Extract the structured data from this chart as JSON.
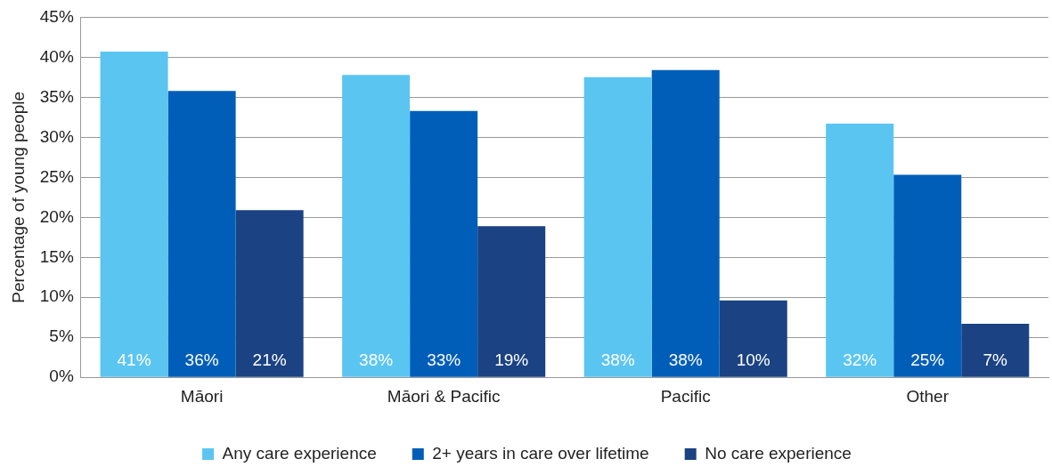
{
  "chart_data": {
    "type": "bar",
    "ylabel": "Percentage of young people",
    "categories": [
      "Māori",
      "Māori & Pacific",
      "Pacific",
      "Other"
    ],
    "series": [
      {
        "name": "Any care experience",
        "color": "#5bc5f2",
        "values": [
          40.7,
          37.8,
          37.5,
          31.7
        ],
        "value_labels": [
          "41%",
          "38%",
          "38%",
          "32%"
        ]
      },
      {
        "name": "2+ years in care over lifetime",
        "color": "#005eb8",
        "values": [
          35.8,
          33.3,
          38.4,
          25.3
        ],
        "value_labels": [
          "36%",
          "33%",
          "38%",
          "25%"
        ]
      },
      {
        "name": "No care experience",
        "color": "#1b4282",
        "values": [
          20.9,
          18.9,
          9.6,
          6.7
        ],
        "value_labels": [
          "21%",
          "19%",
          "10%",
          "7%"
        ]
      }
    ],
    "ylim": [
      0,
      45
    ],
    "yticks": [
      {
        "value": 0,
        "label": "0%"
      },
      {
        "value": 5,
        "label": "5%"
      },
      {
        "value": 10,
        "label": "10%"
      },
      {
        "value": 15,
        "label": "15%"
      },
      {
        "value": 20,
        "label": "20%"
      },
      {
        "value": 25,
        "label": "25%"
      },
      {
        "value": 30,
        "label": "30%"
      },
      {
        "value": 35,
        "label": "35%"
      },
      {
        "value": 40,
        "label": "40%"
      },
      {
        "value": 45,
        "label": "45%"
      }
    ],
    "grid": "y",
    "legend": "bottom"
  }
}
